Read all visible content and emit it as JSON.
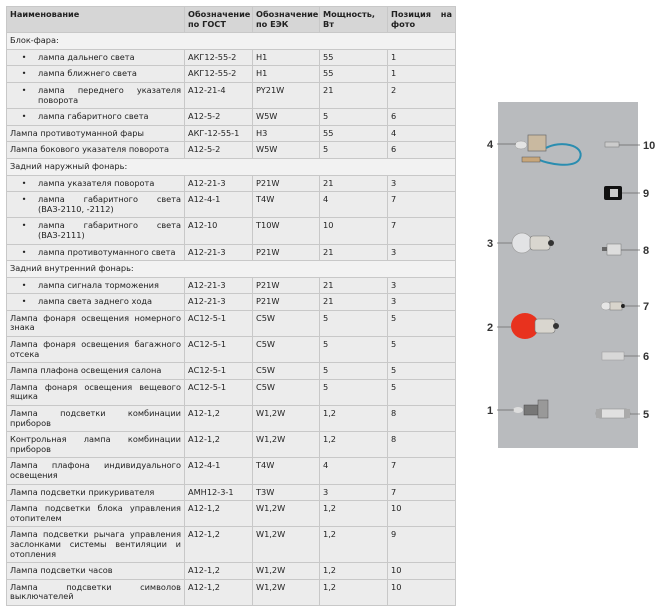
{
  "table": {
    "headers": [
      "Наименование",
      "Обозначение по ГОСТ",
      "Обозначение по ЕЭК",
      "Мощность, Вт",
      "Позиция на фото"
    ],
    "rows": [
      {
        "type": "section",
        "name": "Блок-фара:"
      },
      {
        "type": "bullet",
        "name": "лампа дальнего света",
        "gost": "АКГ12-55-2",
        "eek": "H1",
        "power": "55",
        "pos": "1"
      },
      {
        "type": "bullet",
        "name": "лампа ближнего света",
        "gost": "АКГ12-55-2",
        "eek": "H1",
        "power": "55",
        "pos": "1"
      },
      {
        "type": "bullet",
        "name": "лампа переднего указателя поворота",
        "gost": "А12-21-4",
        "eek": "PY21W",
        "power": "21",
        "pos": "2"
      },
      {
        "type": "bullet",
        "name": "лампа габаритного света",
        "gost": "А12-5-2",
        "eek": "W5W",
        "power": "5",
        "pos": "6"
      },
      {
        "type": "row",
        "name": "Лампа противотуманной фары",
        "gost": "АКГ-12-55-1",
        "eek": "H3",
        "power": "55",
        "pos": "4"
      },
      {
        "type": "row",
        "name": "Лампа бокового указателя поворота",
        "gost": "А12-5-2",
        "eek": "W5W",
        "power": "5",
        "pos": "6"
      },
      {
        "type": "section",
        "name": "Задний наружный фонарь:"
      },
      {
        "type": "bullet",
        "name": "лампа указателя поворота",
        "gost": "А12-21-3",
        "eek": "P21W",
        "power": "21",
        "pos": "3"
      },
      {
        "type": "bullet",
        "name": "лампа габаритного света (ВАЗ-2110, -2112)",
        "gost": "А12-4-1",
        "eek": "T4W",
        "power": "4",
        "pos": "7"
      },
      {
        "type": "bullet",
        "name": "лампа габаритного света (ВАЗ-2111)",
        "gost": "А12-10",
        "eek": "T10W",
        "power": "10",
        "pos": "7"
      },
      {
        "type": "bullet",
        "name": "лампа противотуманного света",
        "gost": "А12-21-3",
        "eek": "P21W",
        "power": "21",
        "pos": "3"
      },
      {
        "type": "section",
        "name": "Задний внутренний фонарь:"
      },
      {
        "type": "bullet",
        "name": "лампа сигнала торможения",
        "gost": "А12-21-3",
        "eek": "P21W",
        "power": "21",
        "pos": "3"
      },
      {
        "type": "bullet",
        "name": "лампа света заднего хода",
        "gost": "А12-21-3",
        "eek": "P21W",
        "power": "21",
        "pos": "3"
      },
      {
        "type": "row",
        "name": "Лампа фонаря освещения номерного знака",
        "gost": "АС12-5-1",
        "eek": "C5W",
        "power": "5",
        "pos": "5"
      },
      {
        "type": "row",
        "name": "Лампа фонаря освещения багажного отсека",
        "gost": "АС12-5-1",
        "eek": "C5W",
        "power": "5",
        "pos": "5"
      },
      {
        "type": "row",
        "name": "Лампа плафона освещения салона",
        "gost": "АС12-5-1",
        "eek": "C5W",
        "power": "5",
        "pos": "5"
      },
      {
        "type": "row",
        "name": "Лампа фонаря освещения вещевого ящика",
        "gost": "АС12-5-1",
        "eek": "C5W",
        "power": "5",
        "pos": "5"
      },
      {
        "type": "row",
        "name": "Лампа подсветки комбинации приборов",
        "gost": "А12-1,2",
        "eek": "W1,2W",
        "power": "1,2",
        "pos": "8"
      },
      {
        "type": "row",
        "name": "Контрольная лампа комбинации приборов",
        "gost": "А12-1,2",
        "eek": "W1,2W",
        "power": "1,2",
        "pos": "8"
      },
      {
        "type": "row",
        "name": "Лампа плафона индивидуального освещения",
        "gost": "А12-4-1",
        "eek": "T4W",
        "power": "4",
        "pos": "7"
      },
      {
        "type": "row",
        "name": "Лампа подсветки прикуривателя",
        "gost": "АМН12-3-1",
        "eek": "T3W",
        "power": "3",
        "pos": "7"
      },
      {
        "type": "row",
        "name": "Лампа подсветки блока управления отопителем",
        "gost": "А12-1,2",
        "eek": "W1,2W",
        "power": "1,2",
        "pos": "10"
      },
      {
        "type": "row",
        "name": "Лампа подсветки рычага управления заслонками системы вентиляции и отопления",
        "gost": "А12-1,2",
        "eek": "W1,2W",
        "power": "1,2",
        "pos": "9"
      },
      {
        "type": "row",
        "name": "Лампа подсветки часов",
        "gost": "А12-1,2",
        "eek": "W1,2W",
        "power": "1,2",
        "pos": "10"
      },
      {
        "type": "row",
        "name": "Лампа подсветки символов выключателей",
        "gost": "А12-1,2",
        "eek": "W1,2W",
        "power": "1,2",
        "pos": "10"
      }
    ]
  },
  "photo": {
    "labels": [
      "1",
      "2",
      "3",
      "4",
      "5",
      "6",
      "7",
      "8",
      "9",
      "10"
    ],
    "background": "#b9bbbe",
    "bulb_red": "#e8321e"
  }
}
